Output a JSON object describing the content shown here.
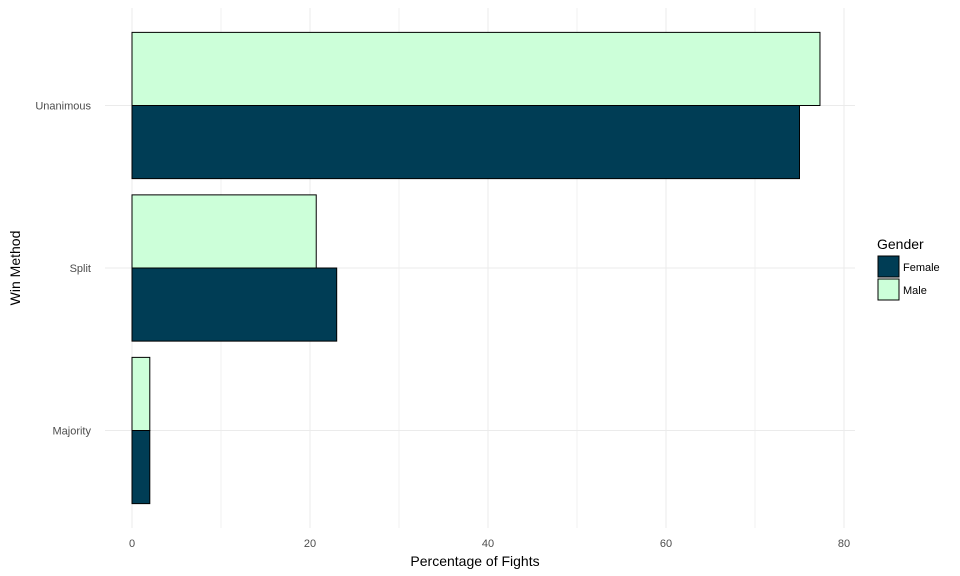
{
  "chart_data": {
    "type": "bar",
    "orientation": "horizontal",
    "xlabel": "Percentage of Fights",
    "ylabel": "Win Method",
    "categories": [
      "Majority",
      "Split",
      "Unanimous"
    ],
    "series": [
      {
        "name": "Female",
        "values": [
          2.0,
          23.0,
          75.0
        ],
        "color": "#003d55"
      },
      {
        "name": "Male",
        "values": [
          2.0,
          20.7,
          77.3
        ],
        "color": "#ccffd9"
      }
    ],
    "xlim": [
      -2,
      81
    ],
    "xticks": [
      0,
      20,
      40,
      60,
      80
    ],
    "grid": true,
    "legend": {
      "title": "Gender",
      "position": "right"
    }
  }
}
